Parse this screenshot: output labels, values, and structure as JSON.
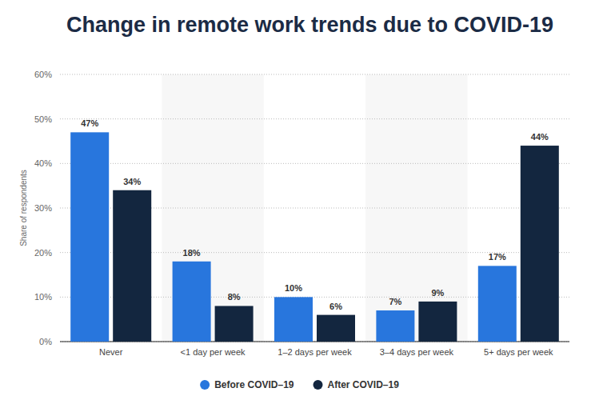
{
  "chart_data": {
    "type": "bar",
    "title": "Change in remote work trends due to COVID-19",
    "y_label": "Share of respondents",
    "categories": [
      "Never",
      "<1 day per week",
      "1–2 days per week",
      "3–4 days per week",
      "5+ days per week"
    ],
    "series": [
      {
        "name": "Before COVID–19",
        "color": "#2876dd",
        "values": [
          47,
          18,
          10,
          7,
          17
        ],
        "value_labels": [
          "47%",
          "18%",
          "10%",
          "7%",
          "17%"
        ]
      },
      {
        "name": "After COVID–19",
        "color": "#13263f",
        "values": [
          34,
          8,
          6,
          9,
          44
        ],
        "value_labels": [
          "34%",
          "8%",
          "6%",
          "9%",
          "44%"
        ]
      }
    ],
    "ylim": [
      0,
      60
    ],
    "yticks": [
      {
        "value": 0,
        "label": "0%"
      },
      {
        "value": 10,
        "label": "10%"
      },
      {
        "value": 20,
        "label": "20%"
      },
      {
        "value": 30,
        "label": "30%"
      },
      {
        "value": 40,
        "label": "40%"
      },
      {
        "value": 50,
        "label": "50%"
      },
      {
        "value": 60,
        "label": "60%"
      }
    ],
    "grid": true,
    "data_labels": true,
    "legend": "bottom"
  }
}
